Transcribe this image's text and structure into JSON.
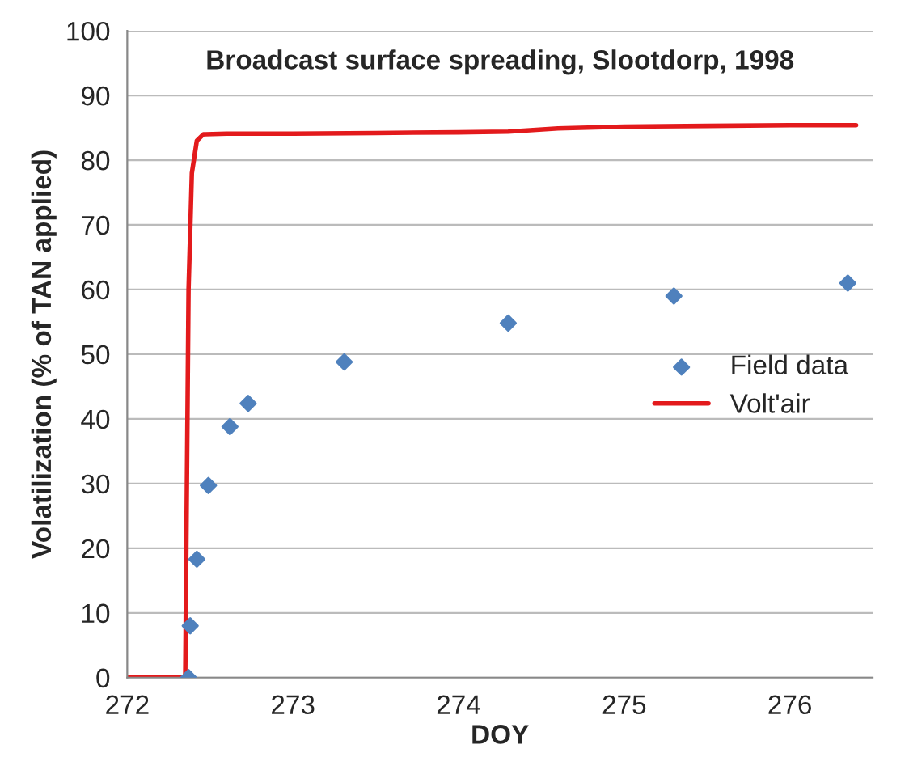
{
  "chart_data": {
    "type": "scatter",
    "title": "Broadcast surface spreading, Slootdorp, 1998",
    "xlabel": "DOY",
    "ylabel": "Volatilization (% of TAN applied)",
    "xlim": [
      272,
      276.5
    ],
    "xticks": [
      272,
      273,
      274,
      275,
      276
    ],
    "ylim": [
      0,
      100
    ],
    "yticks": [
      0,
      10,
      20,
      30,
      40,
      50,
      60,
      70,
      80,
      90,
      100
    ],
    "grid": "y",
    "legend": "right",
    "series": [
      {
        "name": "Field data",
        "marker": "diamond",
        "color": "#4f81bd",
        "x": [
          272.37,
          272.38,
          272.42,
          272.49,
          272.62,
          272.73,
          273.31,
          274.3,
          275.3,
          276.35
        ],
        "values": [
          0,
          8,
          18.3,
          29.7,
          38.8,
          42.4,
          48.8,
          54.8,
          59,
          61
        ]
      },
      {
        "name": "Volt'air",
        "type": "line",
        "line_style": "solid",
        "color": "#e31a1c",
        "x": [
          272,
          272.35,
          272.36,
          272.37,
          272.39,
          272.42,
          272.46,
          272.6,
          273,
          273.5,
          274,
          274.3,
          274.6,
          275,
          275.5,
          276,
          276.4
        ],
        "values": [
          0,
          0,
          30,
          60,
          78,
          83,
          84,
          84.1,
          84.1,
          84.2,
          84.3,
          84.4,
          84.9,
          85.2,
          85.3,
          85.4,
          85.4
        ]
      }
    ]
  }
}
